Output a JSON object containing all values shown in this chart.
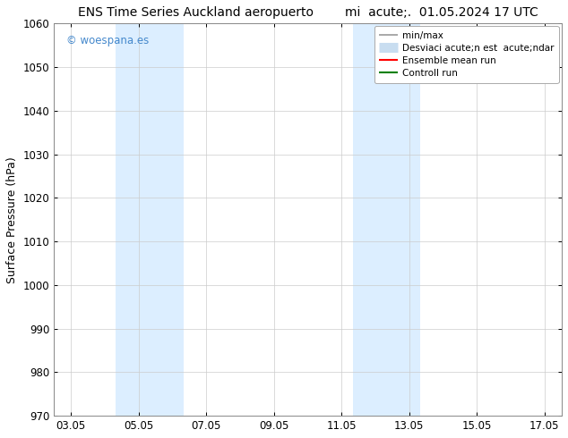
{
  "title": "ENS Time Series Auckland aeropuerto        mi  acute;.  01.05.2024 17 UTC",
  "ylabel": "Surface Pressure (hPa)",
  "ylim": [
    970,
    1060
  ],
  "yticks": [
    970,
    980,
    990,
    1000,
    1010,
    1020,
    1030,
    1040,
    1050,
    1060
  ],
  "xtick_labels": [
    "03.05",
    "05.05",
    "07.05",
    "09.05",
    "11.05",
    "13.05",
    "15.05",
    "17.05"
  ],
  "xtick_positions": [
    0,
    2,
    4,
    6,
    8,
    10,
    12,
    14
  ],
  "xlim": [
    -0.5,
    14.5
  ],
  "shaded_bands": [
    {
      "x_start": 1.33,
      "x_end": 3.33,
      "color": "#dceeff"
    },
    {
      "x_start": 8.33,
      "x_end": 10.33,
      "color": "#dceeff"
    }
  ],
  "watermark_text": "© woespana.es",
  "watermark_color": "#4488cc",
  "legend_labels": [
    "min/max",
    "Desviaci acute;n est  acute;ndar",
    "Ensemble mean run",
    "Controll run"
  ],
  "legend_colors": [
    "#999999",
    "#c8ddf0",
    "#ff0000",
    "#008000"
  ],
  "legend_lw": [
    1.2,
    8,
    1.5,
    1.5
  ],
  "bg_color": "#ffffff",
  "plot_bg_color": "#ffffff",
  "grid_color": "#cccccc",
  "title_fontsize": 10,
  "tick_fontsize": 8.5,
  "ylabel_fontsize": 9,
  "legend_fontsize": 7.5
}
